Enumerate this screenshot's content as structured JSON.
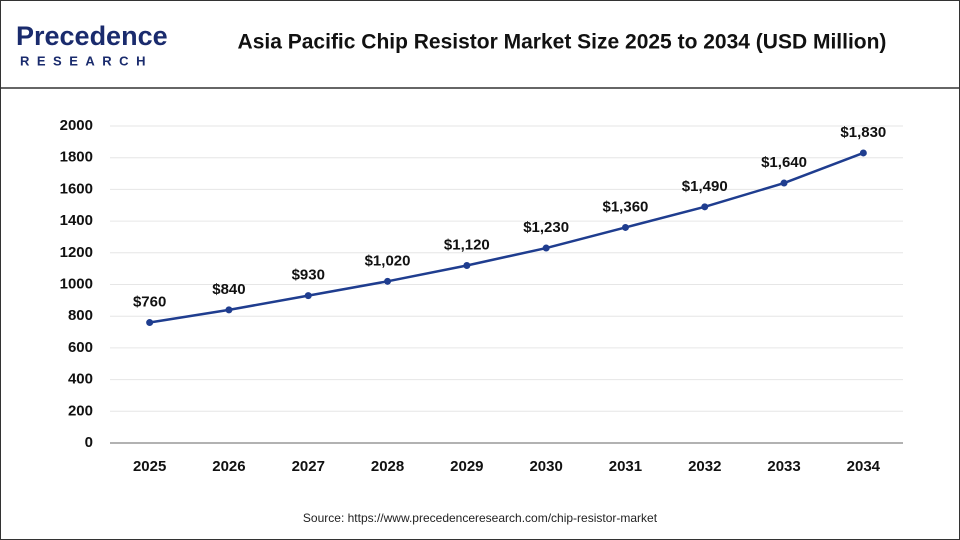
{
  "header": {
    "logo_name": "Precedence",
    "logo_sub": "RESEARCH"
  },
  "chart_data": {
    "type": "line",
    "title": "Asia Pacific Chip Resistor Market Size 2025 to 2034 (USD Million)",
    "categories": [
      "2025",
      "2026",
      "2027",
      "2028",
      "2029",
      "2030",
      "2031",
      "2032",
      "2033",
      "2034"
    ],
    "values": [
      760,
      840,
      930,
      1020,
      1120,
      1230,
      1360,
      1490,
      1640,
      1830
    ],
    "value_labels": [
      "$760",
      "$840",
      "$930",
      "$1,020",
      "$1,120",
      "$1,230",
      "$1,360",
      "$1,490",
      "$1,640",
      "$1,830"
    ],
    "color": "#1f3d8f",
    "ylim": [
      0,
      2000
    ],
    "yticks": [
      0,
      200,
      400,
      600,
      800,
      1000,
      1200,
      1400,
      1600,
      1800,
      2000
    ],
    "grid": true,
    "source": "Source: https://www.precedenceresearch.com/chip-resistor-market"
  }
}
